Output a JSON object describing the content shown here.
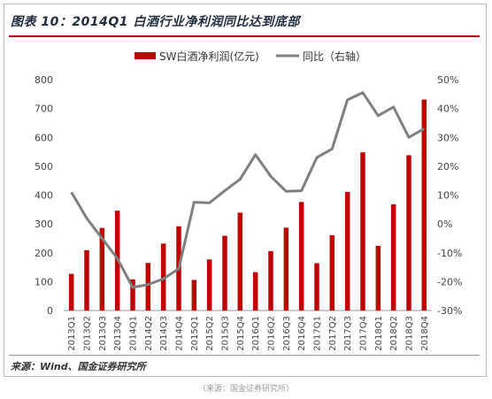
{
  "header": {
    "title": "图表 10：2014Q1 白酒行业净利润同比达到底部"
  },
  "footer": {
    "source": "来源：Wind、国金证券研究所",
    "note": "（来源：国金证券研究所）"
  },
  "colors": {
    "bar": "#c00000",
    "line": "#7f7f7f",
    "accent_rule": "#b3001b"
  },
  "chart_data": {
    "type": "bar",
    "categories": [
      "2013Q1",
      "2013Q2",
      "2013Q3",
      "2013Q4",
      "2014Q1",
      "2014Q2",
      "2014Q3",
      "2014Q4",
      "2015Q1",
      "2015Q2",
      "2015Q3",
      "2015Q4",
      "2016Q1",
      "2016Q2",
      "2016Q3",
      "2016Q4",
      "2017Q1",
      "2017Q2",
      "2017Q3",
      "2017Q4",
      "2018Q1",
      "2018Q2",
      "2018Q3",
      "2018Q4"
    ],
    "series": [
      {
        "name": "SW白酒净利润(亿元)",
        "type": "bar",
        "axis": "left",
        "values": [
          127,
          209,
          286,
          346,
          108,
          165,
          232,
          292,
          106,
          177,
          259,
          339,
          133,
          206,
          287,
          376,
          164,
          261,
          411,
          548,
          224,
          368,
          538,
          731
        ]
      },
      {
        "name": "同比（右轴）",
        "type": "line",
        "axis": "right",
        "values": [
          11.0,
          2.0,
          -5.0,
          -12.0,
          -22.0,
          -21.0,
          -19.0,
          -15.5,
          7.5,
          7.3,
          11.5,
          15.5,
          24.0,
          16.5,
          11.3,
          11.5,
          23.0,
          26.0,
          43.0,
          45.5,
          37.5,
          40.5,
          30.0,
          33.0
        ]
      }
    ],
    "y_left": {
      "min": 0,
      "max": 800,
      "ticks": [
        "0",
        "100",
        "200",
        "300",
        "400",
        "500",
        "600",
        "700",
        "800"
      ]
    },
    "y_right": {
      "min": -30,
      "max": 50,
      "ticks": [
        "-30%",
        "-20%",
        "-10%",
        "0%",
        "10%",
        "20%",
        "30%",
        "40%",
        "50%"
      ]
    },
    "grid": false,
    "legend_position": "top-center"
  }
}
